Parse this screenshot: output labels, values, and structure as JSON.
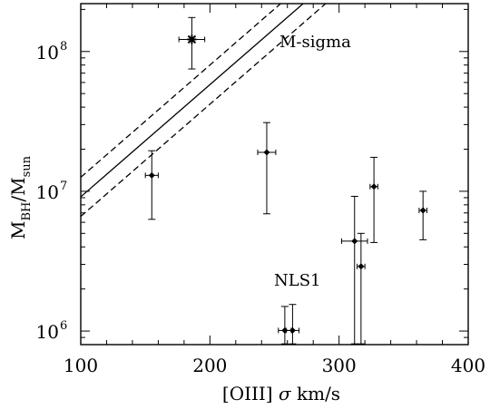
{
  "chart_data": {
    "type": "scatter",
    "xscale": "linear",
    "yscale": "log",
    "xlim": [
      100,
      400
    ],
    "ylim": [
      800000,
      220000000
    ],
    "x_ticks": [
      {
        "value": 100,
        "label": "100"
      },
      {
        "value": 200,
        "label": "200"
      },
      {
        "value": 300,
        "label": "300"
      },
      {
        "value": 400,
        "label": "400"
      }
    ],
    "y_ticks": [
      {
        "value": 1000000,
        "base": "10",
        "exp": "6"
      },
      {
        "value": 10000000,
        "base": "10",
        "exp": "7"
      },
      {
        "value": 100000000,
        "base": "10",
        "exp": "8"
      }
    ],
    "xlabel": {
      "pre": "[OIII] ",
      "sigma": "σ",
      "post": " km/s"
    },
    "ylabel": {
      "m1": "M",
      "sub1": "BH",
      "slash": "/M",
      "sub2": "sun"
    },
    "relation": {
      "label": "M-sigma",
      "exponent": 4.0,
      "x_ref": 200,
      "y_ref": 146000000,
      "scatter_dex": 0.14
    },
    "reference_point": {
      "x": 186,
      "y": 122000000,
      "xerr": 10,
      "ylo": 75000000,
      "yhi": 175000000
    },
    "group_label": "NLS1",
    "points": [
      {
        "x": 155,
        "y": 13000000,
        "xerr": 5,
        "ylo": 6300000,
        "yhi": 19500000
      },
      {
        "x": 244,
        "y": 19000000,
        "xerr": 7,
        "ylo": 6900000,
        "yhi": 31000000
      },
      {
        "x": 258,
        "y": 1010000,
        "xerr": 5,
        "ylo": 810000,
        "yhi": 1500000
      },
      {
        "x": 264,
        "y": 1010000,
        "xerr": 5,
        "ylo": 810000,
        "yhi": 1550000
      },
      {
        "x": 312,
        "y": 4400000,
        "xerr": 10,
        "ylo": 810000,
        "yhi": 9200000
      },
      {
        "x": 317,
        "y": 2900000,
        "xerr": 3,
        "ylo": 810000,
        "yhi": 5000000
      },
      {
        "x": 327,
        "y": 10800000,
        "xerr": 3,
        "ylo": 4300000,
        "yhi": 17500000
      },
      {
        "x": 365,
        "y": 7300000,
        "xerr": 3,
        "ylo": 4500000,
        "yhi": 10000000
      }
    ]
  }
}
